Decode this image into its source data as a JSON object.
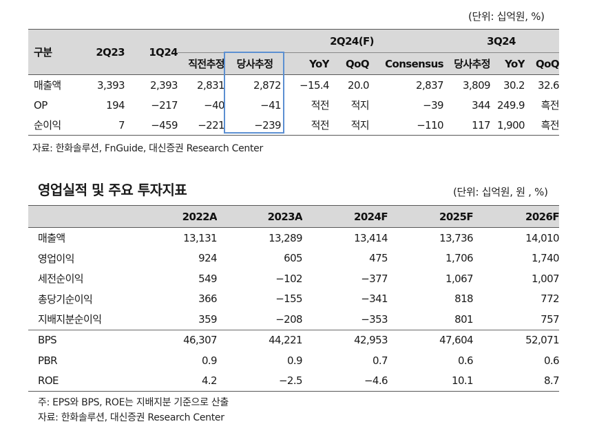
{
  "table1": {
    "unit": "(단위: 십억원, %)",
    "header_group": {
      "label_col": "구분",
      "col_2q23": "2Q23",
      "col_1q24": "1Q24",
      "group_2q24": "2Q24(F)",
      "group_3q24": "3Q24"
    },
    "header_sub": [
      "직전추정",
      "당사추정",
      "YoY",
      "QoQ",
      "Consensus",
      "당사추정",
      "YoY",
      "QoQ"
    ],
    "rows": [
      {
        "label": "매출액",
        "cells": [
          "3,393",
          "2,393",
          "2,831",
          "2,872",
          "−15.4",
          "20.0",
          "2,837",
          "3,809",
          "30.2",
          "32.6"
        ]
      },
      {
        "label": "OP",
        "cells": [
          "194",
          "−217",
          "−40",
          "−41",
          "적전",
          "적지",
          "−39",
          "344",
          "249.9",
          "흑전"
        ]
      },
      {
        "label": "순이익",
        "cells": [
          "7",
          "−459",
          "−221",
          "−239",
          "적전",
          "적지",
          "−110",
          "117",
          "1,900",
          "흑전"
        ]
      }
    ],
    "source": "자료: 한화솔루션, FnGuide, 대신증권 Research Center"
  },
  "table2": {
    "title": "영업실적 및 주요 투자지표",
    "unit": "(단위: 십억원, 원 , %)",
    "years": [
      "2022A",
      "2023A",
      "2024F",
      "2025F",
      "2026F"
    ],
    "rows": [
      {
        "label": "매출액",
        "cells": [
          "13,131",
          "13,289",
          "13,414",
          "13,736",
          "14,010"
        ]
      },
      {
        "label": "영업이익",
        "cells": [
          "924",
          "605",
          "475",
          "1,706",
          "1,740"
        ]
      },
      {
        "label": "세전순이익",
        "cells": [
          "549",
          "−102",
          "−377",
          "1,067",
          "1,007"
        ]
      },
      {
        "label": "총당기순이익",
        "cells": [
          "366",
          "−155",
          "−341",
          "818",
          "772"
        ]
      },
      {
        "label": "지배지분순이익",
        "cells": [
          "359",
          "−208",
          "−353",
          "801",
          "757"
        ]
      },
      {
        "label": "BPS",
        "cells": [
          "46,307",
          "44,221",
          "42,953",
          "47,604",
          "52,071"
        ]
      },
      {
        "label": "PBR",
        "cells": [
          "0.9",
          "0.9",
          "0.7",
          "0.6",
          "0.6"
        ]
      },
      {
        "label": "ROE",
        "cells": [
          "4.2",
          "−2.5",
          "−4.6",
          "10.1",
          "8.7"
        ]
      }
    ],
    "note": "주: EPS와 BPS, ROE는 지배지분 기준으로 산출",
    "source": "자료: 한화솔루션, 대신증권 Research Center"
  }
}
